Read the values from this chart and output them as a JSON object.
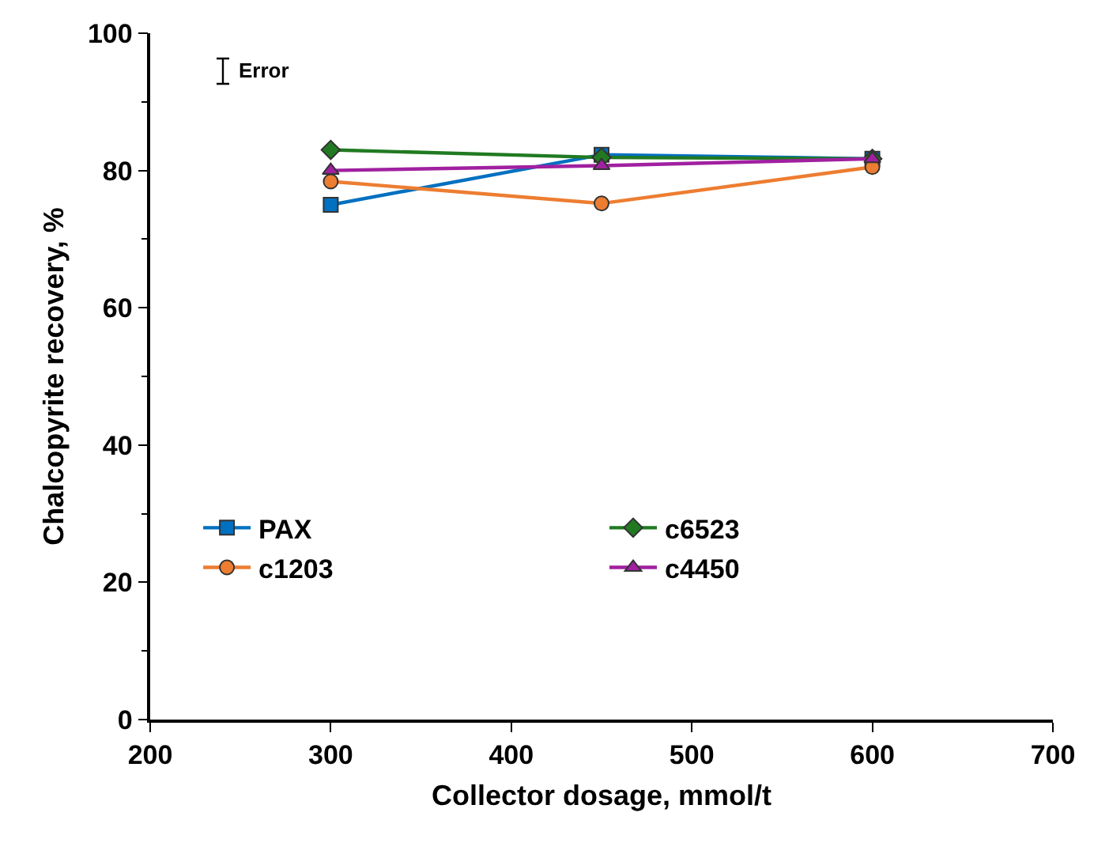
{
  "chart_data": {
    "type": "line",
    "xlabel": "Collector dosage, mmol/t",
    "ylabel": "Chalcopyrite recovery, %",
    "x": [
      300,
      450,
      600
    ],
    "series": [
      {
        "name": "PAX",
        "color": "#0070c0",
        "marker": "square",
        "values": [
          75.0,
          82.3,
          81.7
        ]
      },
      {
        "name": "c6523",
        "color": "#217a21",
        "marker": "diamond",
        "values": [
          83.0,
          81.9,
          81.7
        ]
      },
      {
        "name": "c1203",
        "color": "#ed7d31",
        "marker": "circle",
        "values": [
          78.4,
          75.2,
          80.5
        ]
      },
      {
        "name": "c4450",
        "color": "#a020a0",
        "marker": "triangle",
        "values": [
          80.0,
          80.7,
          81.7
        ]
      }
    ],
    "xlim": [
      200,
      700
    ],
    "xticks": [
      200,
      300,
      400,
      500,
      600,
      700
    ],
    "ylim": [
      0,
      100
    ],
    "yticks": [
      0,
      20,
      40,
      60,
      80,
      100
    ],
    "grid": false,
    "legend": "bottom",
    "line_style": "solid",
    "annotations": [
      "Error"
    ]
  }
}
